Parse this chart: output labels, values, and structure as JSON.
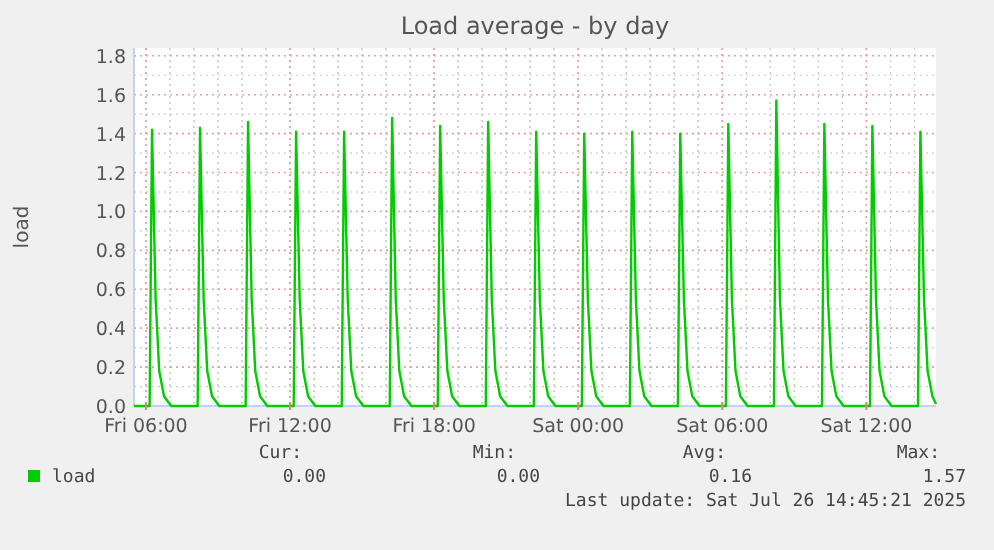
{
  "chart_data": {
    "type": "line",
    "title": "Load average - by day",
    "ylabel": "load",
    "x": [
      "2025-07-25T05:30",
      "2025-07-25T06:09",
      "2025-07-25T06:15",
      "2025-07-25T06:24",
      "2025-07-25T06:33",
      "2025-07-25T06:45",
      "2025-07-25T07:03",
      "2025-07-25T08:09",
      "2025-07-25T08:15",
      "2025-07-25T08:24",
      "2025-07-25T08:33",
      "2025-07-25T08:45",
      "2025-07-25T09:03",
      "2025-07-25T10:09",
      "2025-07-25T10:15",
      "2025-07-25T10:24",
      "2025-07-25T10:33",
      "2025-07-25T10:45",
      "2025-07-25T11:03",
      "2025-07-25T12:09",
      "2025-07-25T12:15",
      "2025-07-25T12:24",
      "2025-07-25T12:33",
      "2025-07-25T12:45",
      "2025-07-25T13:03",
      "2025-07-25T14:09",
      "2025-07-25T14:15",
      "2025-07-25T14:24",
      "2025-07-25T14:33",
      "2025-07-25T14:45",
      "2025-07-25T15:03",
      "2025-07-25T16:09",
      "2025-07-25T16:15",
      "2025-07-25T16:24",
      "2025-07-25T16:33",
      "2025-07-25T16:45",
      "2025-07-25T17:03",
      "2025-07-25T18:09",
      "2025-07-25T18:15",
      "2025-07-25T18:24",
      "2025-07-25T18:33",
      "2025-07-25T18:45",
      "2025-07-25T19:03",
      "2025-07-25T20:09",
      "2025-07-25T20:15",
      "2025-07-25T20:24",
      "2025-07-25T20:33",
      "2025-07-25T20:45",
      "2025-07-25T21:03",
      "2025-07-25T22:09",
      "2025-07-25T22:15",
      "2025-07-25T22:24",
      "2025-07-25T22:33",
      "2025-07-25T22:45",
      "2025-07-25T23:03",
      "2025-07-26T00:09",
      "2025-07-26T00:15",
      "2025-07-26T00:24",
      "2025-07-26T00:33",
      "2025-07-26T00:45",
      "2025-07-26T01:03",
      "2025-07-26T02:09",
      "2025-07-26T02:15",
      "2025-07-26T02:24",
      "2025-07-26T02:33",
      "2025-07-26T02:45",
      "2025-07-26T03:03",
      "2025-07-26T04:09",
      "2025-07-26T04:15",
      "2025-07-26T04:24",
      "2025-07-26T04:33",
      "2025-07-26T04:45",
      "2025-07-26T05:03",
      "2025-07-26T06:09",
      "2025-07-26T06:15",
      "2025-07-26T06:24",
      "2025-07-26T06:33",
      "2025-07-26T06:45",
      "2025-07-26T07:03",
      "2025-07-26T08:09",
      "2025-07-26T08:15",
      "2025-07-26T08:24",
      "2025-07-26T08:33",
      "2025-07-26T08:45",
      "2025-07-26T09:03",
      "2025-07-26T10:09",
      "2025-07-26T10:15",
      "2025-07-26T10:24",
      "2025-07-26T10:33",
      "2025-07-26T10:45",
      "2025-07-26T11:03",
      "2025-07-26T12:09",
      "2025-07-26T12:15",
      "2025-07-26T12:24",
      "2025-07-26T12:33",
      "2025-07-26T12:45",
      "2025-07-26T13:03",
      "2025-07-26T14:09",
      "2025-07-26T14:15",
      "2025-07-26T14:24",
      "2025-07-26T14:33",
      "2025-07-26T14:45",
      "2025-07-26T14:54"
    ],
    "series": [
      {
        "name": "load",
        "color": "#00cc00",
        "values": [
          0,
          0,
          1.42,
          0.55,
          0.18,
          0.05,
          0,
          0,
          1.43,
          0.55,
          0.18,
          0.05,
          0,
          0,
          1.46,
          0.55,
          0.18,
          0.05,
          0,
          0,
          1.41,
          0.55,
          0.18,
          0.05,
          0,
          0,
          1.41,
          0.55,
          0.18,
          0.05,
          0,
          0,
          1.48,
          0.55,
          0.18,
          0.05,
          0,
          0,
          1.44,
          0.55,
          0.18,
          0.05,
          0,
          0,
          1.46,
          0.55,
          0.18,
          0.05,
          0,
          0,
          1.41,
          0.55,
          0.18,
          0.05,
          0,
          0,
          1.4,
          0.55,
          0.18,
          0.05,
          0,
          0,
          1.41,
          0.55,
          0.18,
          0.05,
          0,
          0,
          1.4,
          0.55,
          0.18,
          0.05,
          0,
          0,
          1.45,
          0.55,
          0.18,
          0.05,
          0,
          0,
          1.57,
          0.55,
          0.18,
          0.05,
          0,
          0,
          1.45,
          0.55,
          0.18,
          0.05,
          0,
          0,
          1.44,
          0.55,
          0.18,
          0.05,
          0,
          0,
          1.41,
          0.55,
          0.18,
          0.05,
          0.01
        ]
      }
    ],
    "xlim": [
      "2025-07-25T05:30",
      "2025-07-26T14:54"
    ],
    "xticks": [
      {
        "value": "2025-07-25T06:00",
        "label": "Fri 06:00"
      },
      {
        "value": "2025-07-25T12:00",
        "label": "Fri 12:00"
      },
      {
        "value": "2025-07-25T18:00",
        "label": "Fri 18:00"
      },
      {
        "value": "2025-07-26T00:00",
        "label": "Sat 00:00"
      },
      {
        "value": "2025-07-26T06:00",
        "label": "Sat 06:00"
      },
      {
        "value": "2025-07-26T12:00",
        "label": "Sat 12:00"
      }
    ],
    "ylim": [
      0,
      1.84
    ],
    "yticks": [
      {
        "value": 0,
        "label": "0.0"
      },
      {
        "value": 0.2,
        "label": "0.2"
      },
      {
        "value": 0.4,
        "label": "0.4"
      },
      {
        "value": 0.6,
        "label": "0.6"
      },
      {
        "value": 0.8,
        "label": "0.8"
      },
      {
        "value": 1,
        "label": "1.0"
      },
      {
        "value": 1.2,
        "label": "1.2"
      },
      {
        "value": 1.4,
        "label": "1.4"
      },
      {
        "value": 1.6,
        "label": "1.6"
      },
      {
        "value": 1.8,
        "label": "1.8"
      }
    ],
    "grid": true,
    "legend": "bottom left",
    "annotations": [
      "Cur:",
      "0.00",
      "Min:",
      "0.00",
      "Avg:",
      "0.16",
      "Max:",
      "1.57",
      "Last update: Sat Jul 26 14:45:21 2025"
    ]
  }
}
